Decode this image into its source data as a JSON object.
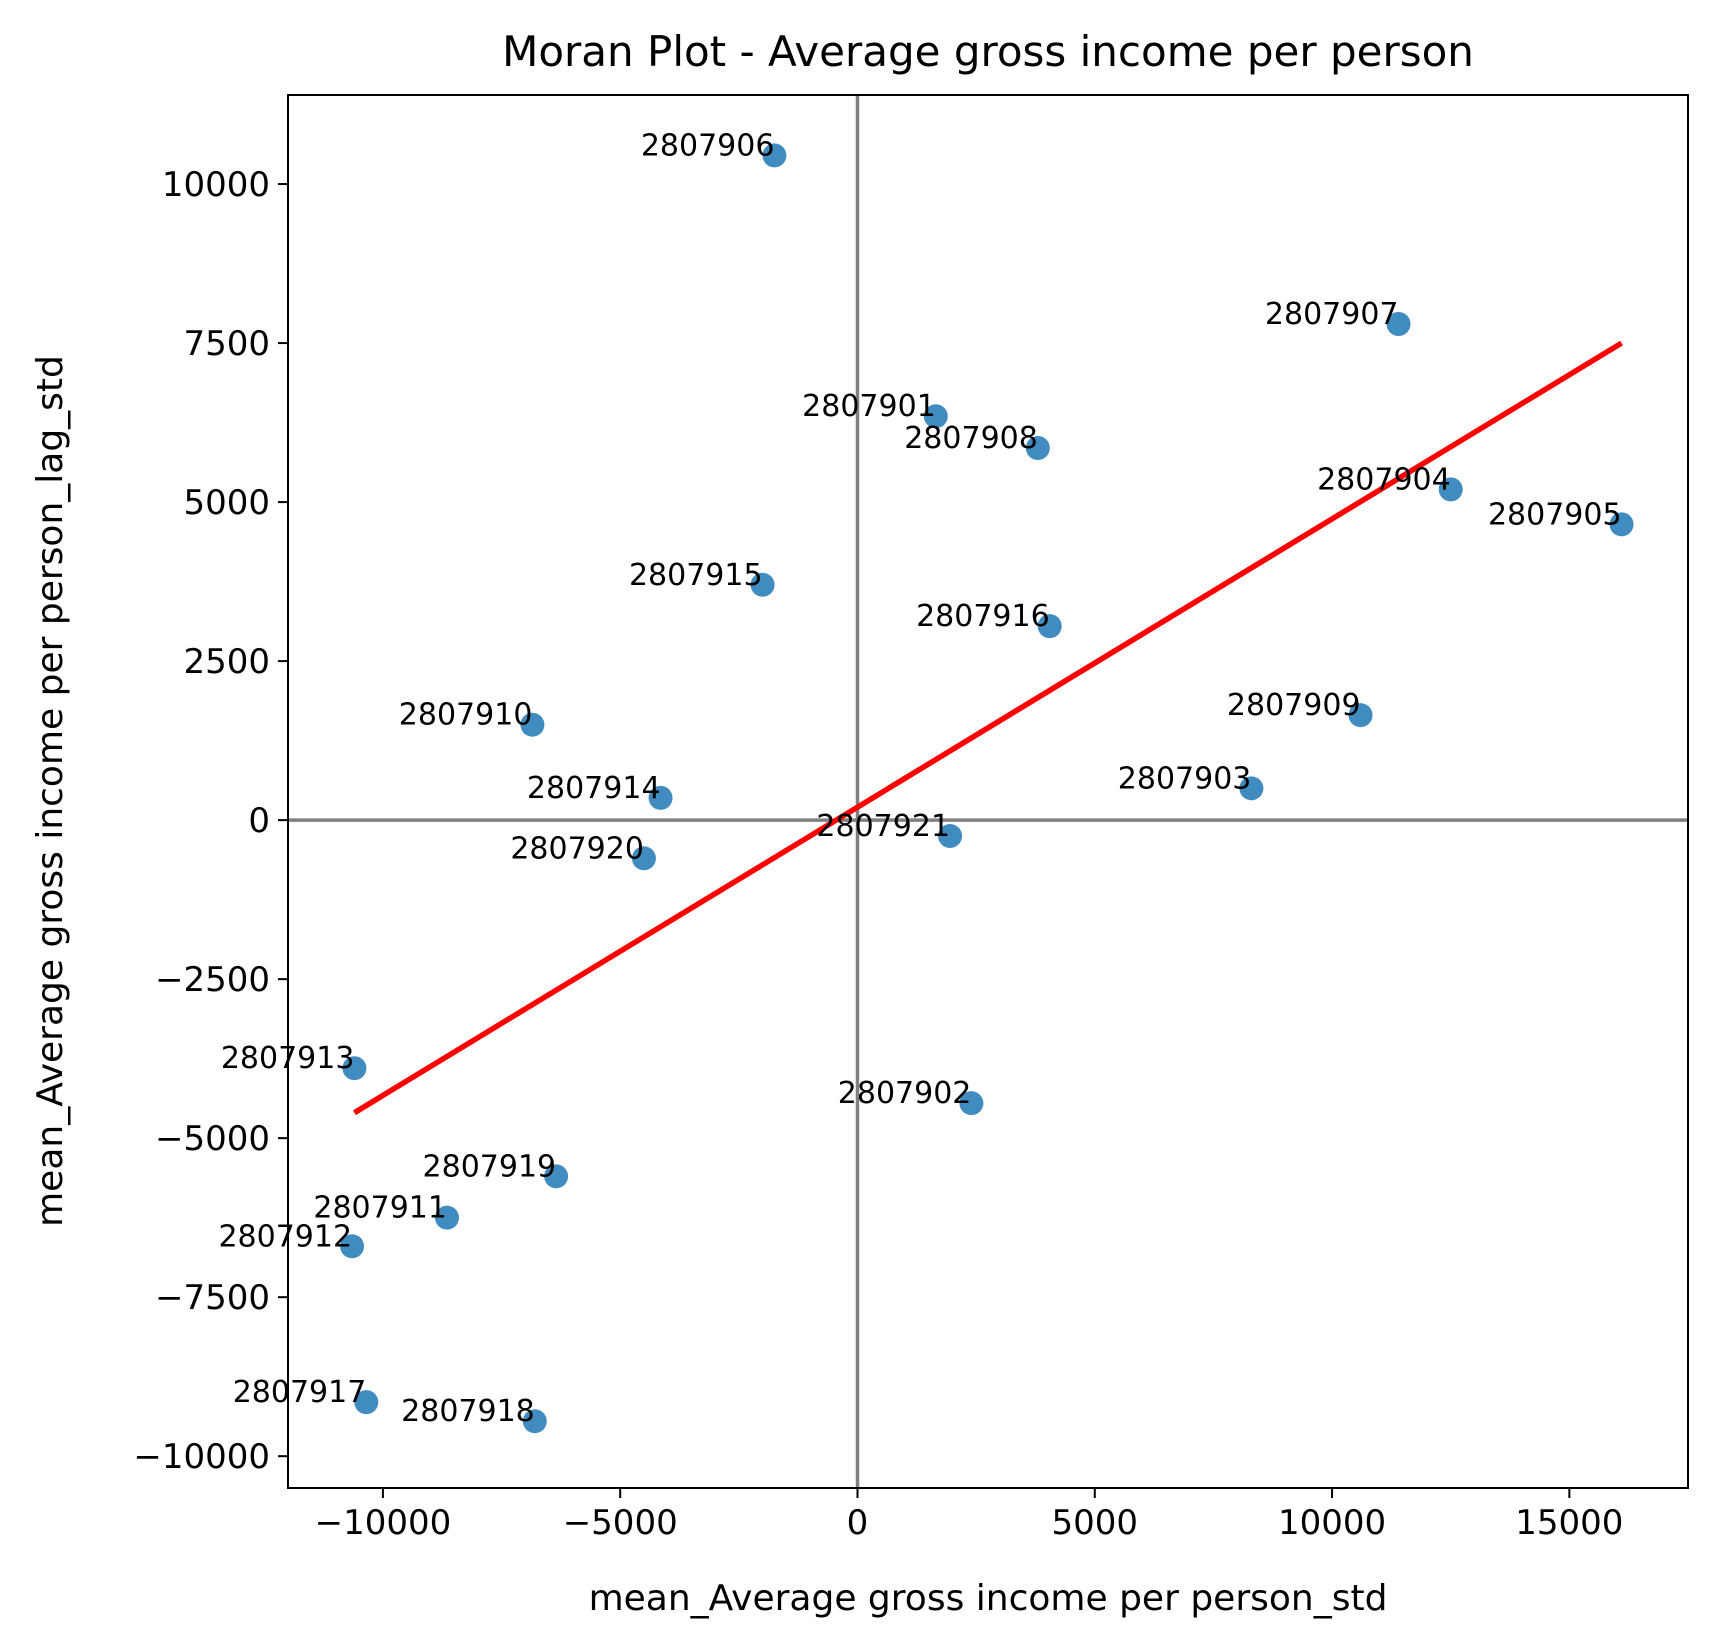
{
  "chart_data": {
    "type": "scatter",
    "title": "Moran Plot - Average gross income per person",
    "xlabel": "mean_Average gross income per person_std",
    "ylabel": "mean_Average gross income per person_lag_std",
    "xlim": [
      -12000,
      17500
    ],
    "ylim": [
      -10500,
      11400
    ],
    "xticks": [
      -10000,
      -5000,
      0,
      5000,
      10000,
      15000
    ],
    "yticks": [
      -10000,
      -7500,
      -5000,
      -2500,
      0,
      2500,
      5000,
      7500,
      10000
    ],
    "xtick_labels": [
      "−10000",
      "−5000",
      "0",
      "5000",
      "10000",
      "15000"
    ],
    "ytick_labels": [
      "−10000",
      "−7500",
      "−5000",
      "−2500",
      "0",
      "2500",
      "5000",
      "7500",
      "10000"
    ],
    "grid": false,
    "reference_lines": {
      "x": 0,
      "y": 0,
      "color": "#808080"
    },
    "point_color": "#1f77b4",
    "fit_line": {
      "color": "#ff0000",
      "x": [
        -10600,
        16100
      ],
      "y": [
        -4600,
        7500
      ]
    },
    "points": [
      {
        "label": "2807901",
        "x": 1650,
        "y": 6350
      },
      {
        "label": "2807902",
        "x": 2400,
        "y": -4450
      },
      {
        "label": "2807903",
        "x": 8300,
        "y": 500
      },
      {
        "label": "2807904",
        "x": 12500,
        "y": 5200
      },
      {
        "label": "2807905",
        "x": 16100,
        "y": 4650
      },
      {
        "label": "2807906",
        "x": -1750,
        "y": 10450
      },
      {
        "label": "2807907",
        "x": 11400,
        "y": 7800
      },
      {
        "label": "2807908",
        "x": 3800,
        "y": 5850
      },
      {
        "label": "2807909",
        "x": 10600,
        "y": 1650
      },
      {
        "label": "2807910",
        "x": -6850,
        "y": 1500
      },
      {
        "label": "2807911",
        "x": -8650,
        "y": -6250
      },
      {
        "label": "2807912",
        "x": -10650,
        "y": -6700
      },
      {
        "label": "2807913",
        "x": -10600,
        "y": -3900
      },
      {
        "label": "2807914",
        "x": -4150,
        "y": 350
      },
      {
        "label": "2807915",
        "x": -2000,
        "y": 3700
      },
      {
        "label": "2807916",
        "x": 4050,
        "y": 3050
      },
      {
        "label": "2807917",
        "x": -10350,
        "y": -9150
      },
      {
        "label": "2807918",
        "x": -6800,
        "y": -9450
      },
      {
        "label": "2807919",
        "x": -6350,
        "y": -5600
      },
      {
        "label": "2807920",
        "x": -4500,
        "y": -600
      },
      {
        "label": "2807921",
        "x": 1950,
        "y": -250
      }
    ]
  }
}
